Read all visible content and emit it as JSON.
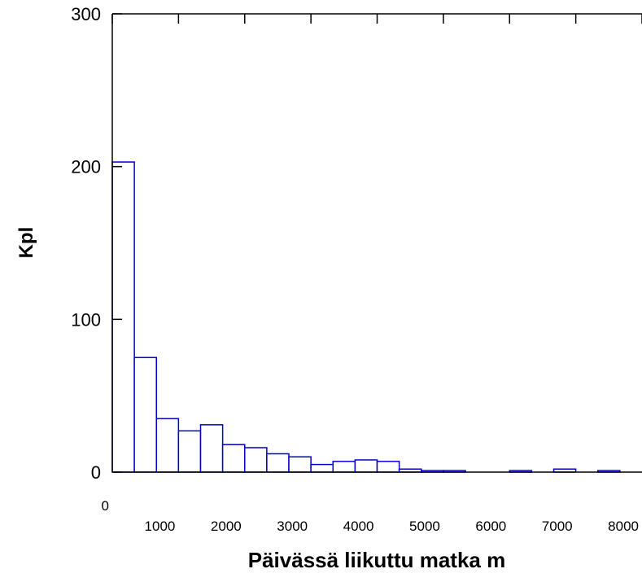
{
  "chart_data": {
    "type": "histogram",
    "xlabel": "Päivässä liikuttu matka m",
    "ylabel": "Kpl",
    "bins": [
      0,
      333.33,
      666.67,
      1000,
      1333.33,
      1666.67,
      2000,
      2333.33,
      2666.67,
      3000,
      3333.33,
      3666.67,
      4000,
      4333.33,
      4666.67,
      5000,
      5333.33,
      5666.67,
      6000,
      6333.33,
      6666.67,
      7000,
      7333.33,
      7666.67,
      8000
    ],
    "values": [
      203,
      75,
      35,
      27,
      31,
      18,
      16,
      12,
      10,
      5,
      7,
      8,
      7,
      2,
      1,
      1,
      0,
      0,
      1,
      0,
      2,
      0,
      1,
      0
    ],
    "color": "#0000cc",
    "xlim": [
      0,
      8000
    ],
    "xticks": [
      0,
      1000,
      2000,
      3000,
      4000,
      5000,
      6000,
      7000,
      8000
    ],
    "ylim": [
      0,
      300
    ],
    "yticks": [
      0,
      100,
      200,
      300
    ]
  }
}
